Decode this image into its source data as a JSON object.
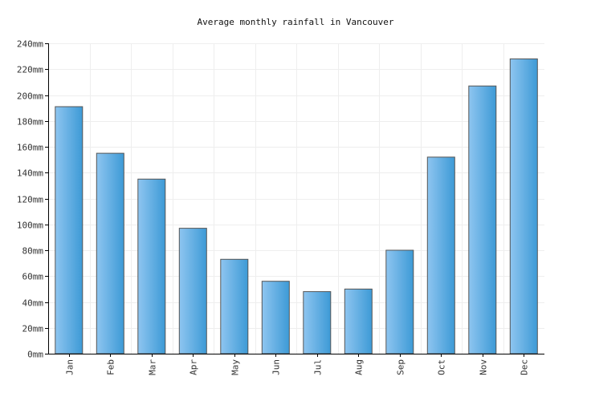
{
  "chart_data": {
    "type": "bar",
    "title": "Average monthly rainfall in Vancouver",
    "xlabel": "",
    "ylabel": "",
    "unit": "mm",
    "categories": [
      "Jan",
      "Feb",
      "Mar",
      "Apr",
      "May",
      "Jun",
      "Jul",
      "Aug",
      "Sep",
      "Oct",
      "Nov",
      "Dec"
    ],
    "values": [
      191,
      155,
      135,
      97,
      73,
      56,
      48,
      50,
      80,
      152,
      207,
      228
    ],
    "ylim": [
      0,
      240
    ],
    "yticks": [
      "0mm",
      "20mm",
      "40mm",
      "60mm",
      "80mm",
      "100mm",
      "120mm",
      "140mm",
      "160mm",
      "180mm",
      "200mm",
      "220mm",
      "240mm"
    ],
    "grid": true,
    "legend": "none",
    "colors": {
      "bar_light": "#8ec5f0",
      "bar_dark": "#3d9ad6",
      "bar_border": "#555555",
      "grid": "#eeeeee",
      "axis": "#000000"
    }
  }
}
